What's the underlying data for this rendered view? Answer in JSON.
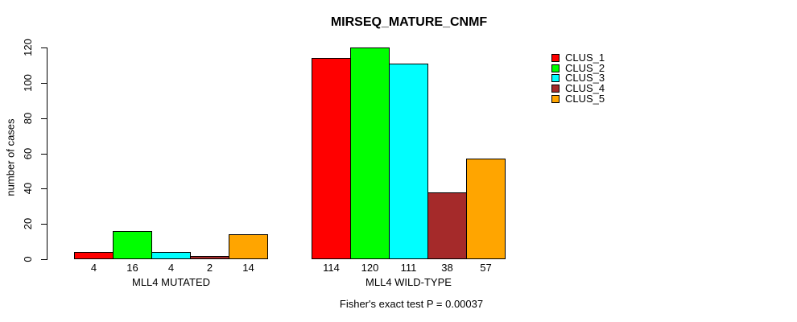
{
  "chart_data": {
    "type": "bar",
    "grouped": true,
    "title": "MIRSEQ_MATURE_CNMF",
    "ylabel": "number of cases",
    "xlabel": "",
    "categories": [
      "MLL4 MUTATED",
      "MLL4 WILD-TYPE"
    ],
    "series": [
      {
        "name": "CLUS_1",
        "color": "#FF0000",
        "values": [
          4,
          114
        ]
      },
      {
        "name": "CLUS_2",
        "color": "#00FF00",
        "values": [
          16,
          120
        ]
      },
      {
        "name": "CLUS_3",
        "color": "#00FFFF",
        "values": [
          4,
          111
        ]
      },
      {
        "name": "CLUS_4",
        "color": "#A52A2A",
        "values": [
          2,
          38
        ]
      },
      {
        "name": "CLUS_5",
        "color": "#FFA500",
        "values": [
          14,
          57
        ]
      }
    ],
    "yticks": [
      0,
      20,
      40,
      60,
      80,
      100,
      120
    ],
    "ylim": [
      0,
      120
    ],
    "grid": false,
    "bar_value_labels_shown": true,
    "legend_position": "right",
    "legend_entries": [
      "CLUS_1",
      "CLUS_2",
      "CLUS_3",
      "CLUS_4",
      "CLUS_5"
    ],
    "footnote": "Fisher's exact test P = 0.00037",
    "axis_color": "#000000",
    "background_color": "#FFFFFF"
  }
}
